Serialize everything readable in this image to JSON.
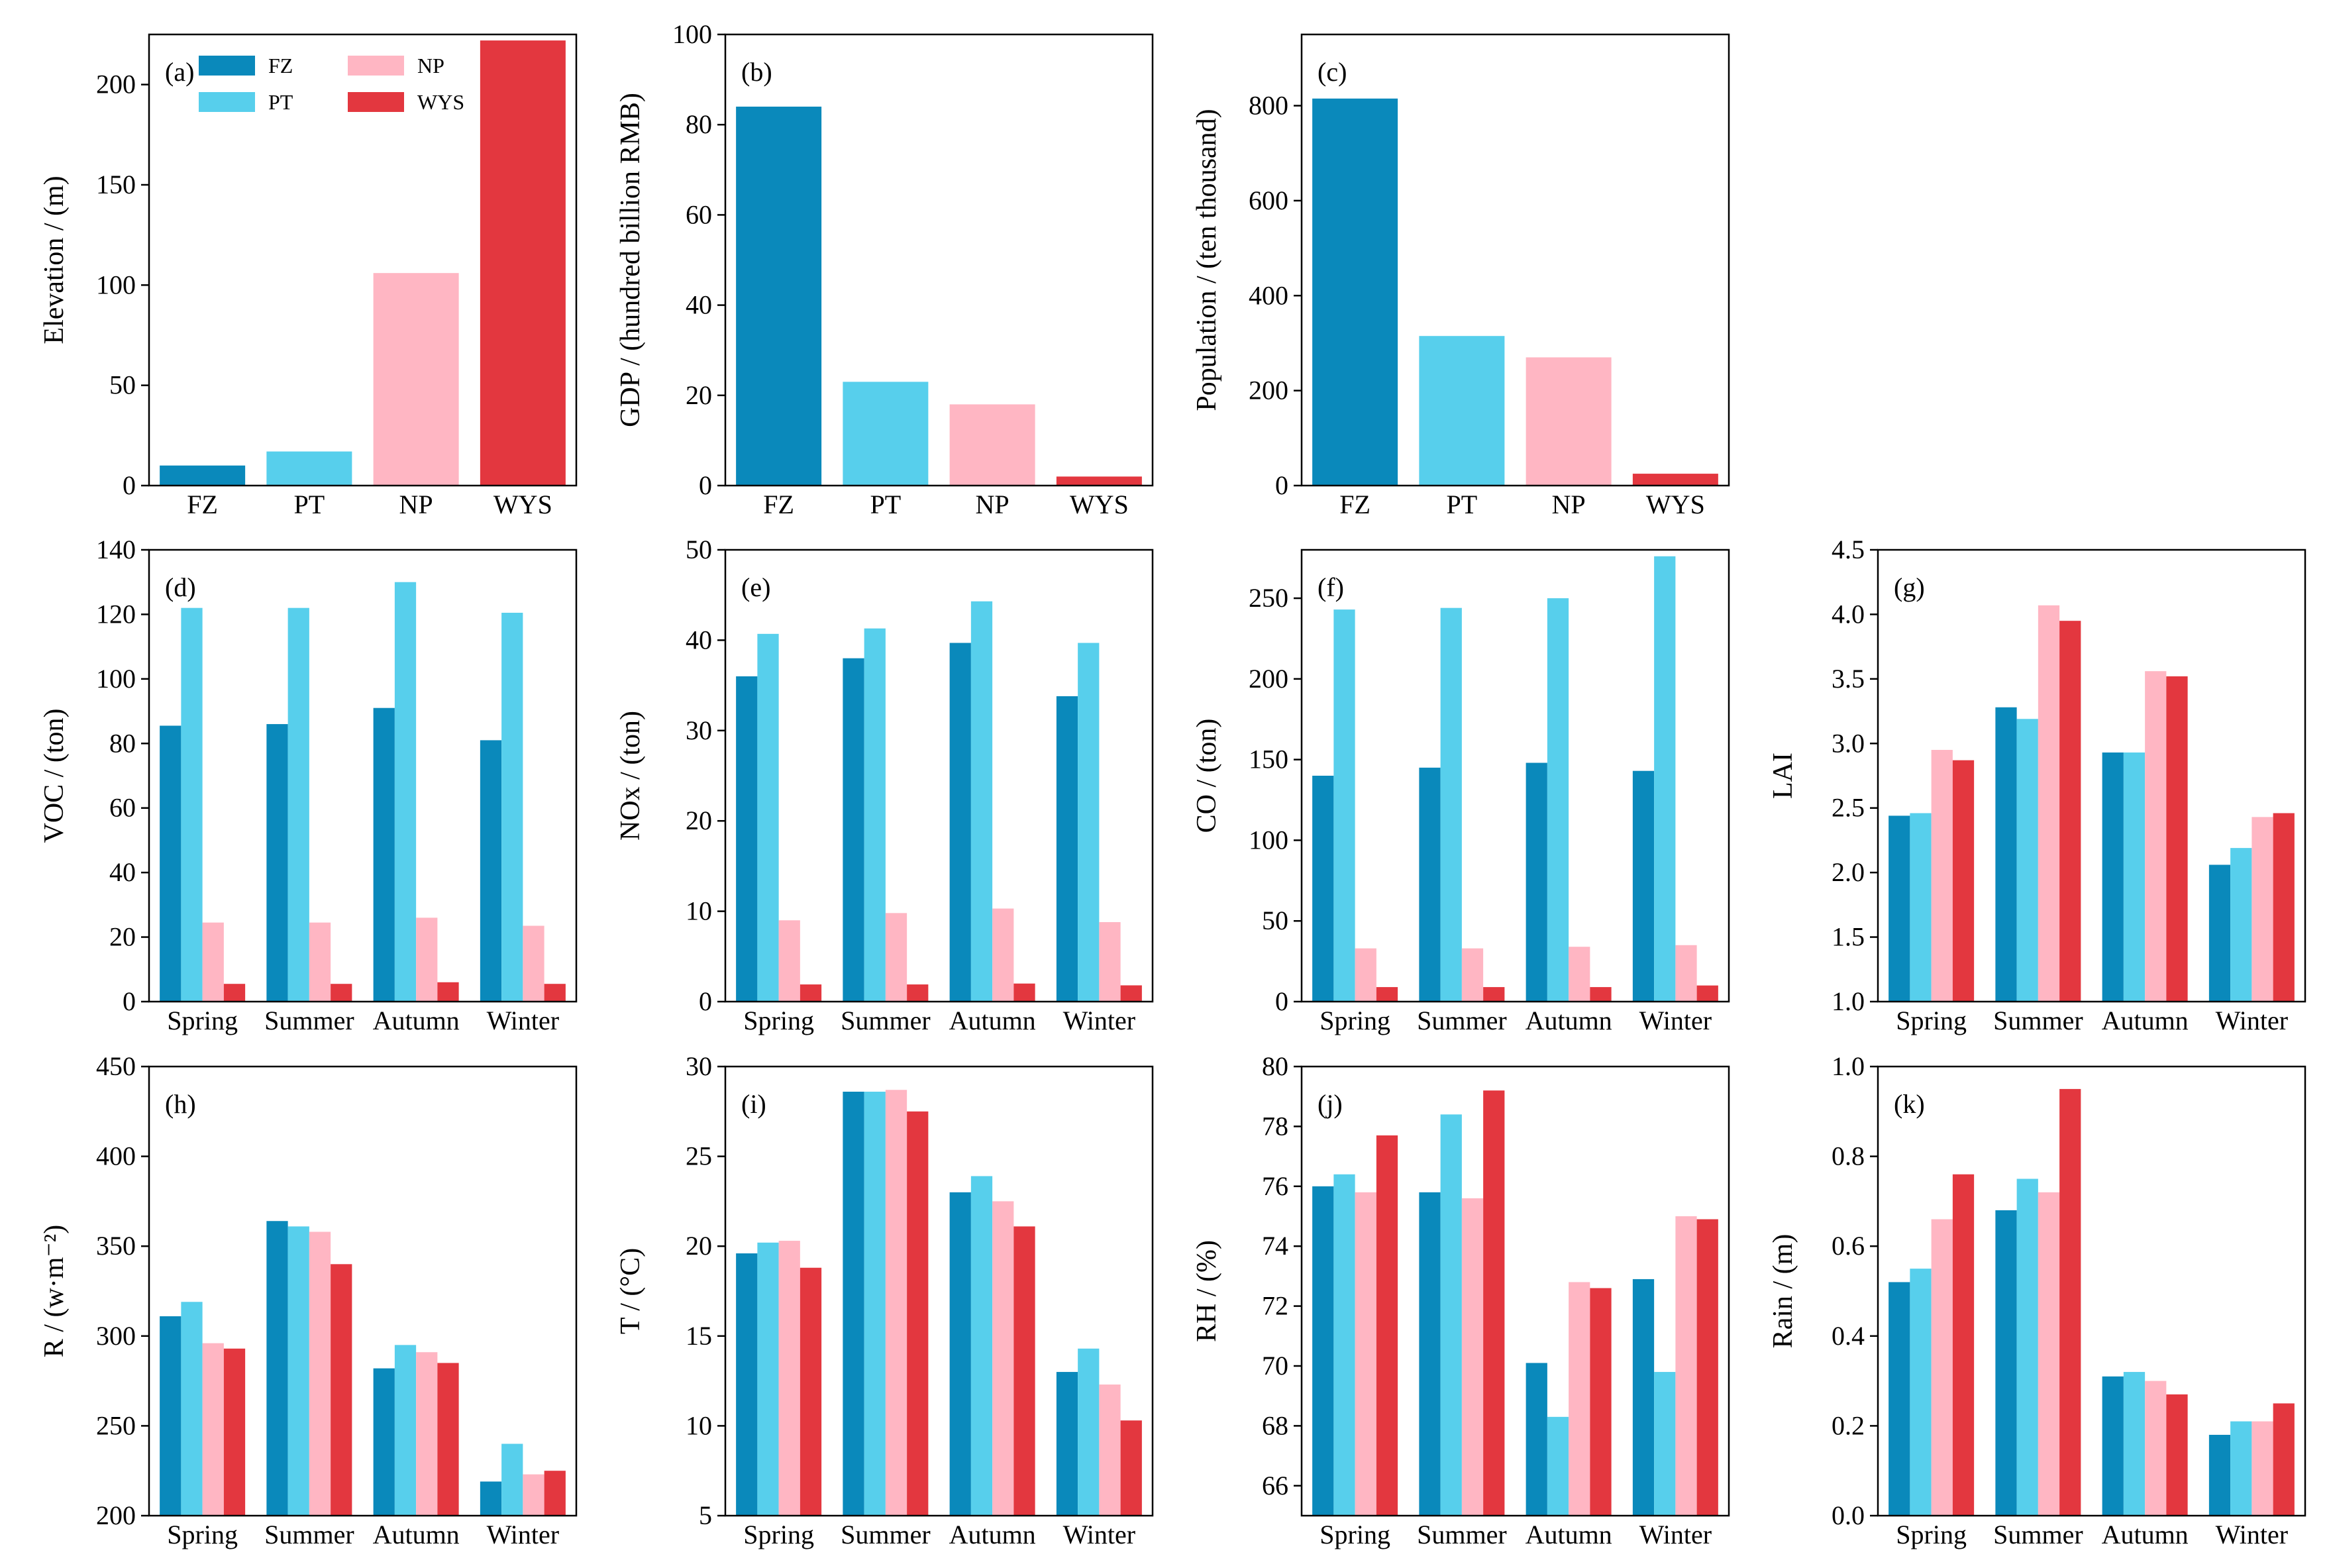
{
  "colors": {
    "FZ": "#0a89bb",
    "PT": "#57cfec",
    "NP": "#ffb6c3",
    "WYS": "#e3373f"
  },
  "legend": {
    "entries": [
      "FZ",
      "PT",
      "NP",
      "WYS"
    ]
  },
  "chart_data": [
    {
      "id": "a",
      "letter": "(a)",
      "type": "bar",
      "ylabel": "Elevation / (m)",
      "categories": [
        "FZ",
        "PT",
        "NP",
        "WYS"
      ],
      "values": [
        10,
        17,
        106,
        222
      ],
      "ylim": [
        0,
        225
      ],
      "yticks": [
        0,
        50,
        100,
        150,
        200
      ]
    },
    {
      "id": "b",
      "letter": "(b)",
      "type": "bar",
      "ylabel": "GDP / (hundred billion RMB)",
      "categories": [
        "FZ",
        "PT",
        "NP",
        "WYS"
      ],
      "values": [
        84,
        23,
        18,
        2
      ],
      "ylim": [
        0,
        100
      ],
      "yticks": [
        0,
        20,
        40,
        60,
        80,
        100
      ]
    },
    {
      "id": "c",
      "letter": "(c)",
      "type": "bar",
      "ylabel": "Population / (ten thousand)",
      "categories": [
        "FZ",
        "PT",
        "NP",
        "WYS"
      ],
      "values": [
        815,
        315,
        270,
        25
      ],
      "ylim": [
        0,
        950
      ],
      "yticks": [
        0,
        200,
        400,
        600,
        800
      ]
    },
    {
      "id": "d",
      "letter": "(d)",
      "type": "bar",
      "ylabel": "VOC / (ton)",
      "categories": [
        "Spring",
        "Summer",
        "Autumn",
        "Winter"
      ],
      "series": [
        {
          "name": "FZ",
          "values": [
            85.5,
            86,
            91,
            81
          ]
        },
        {
          "name": "PT",
          "values": [
            122,
            122,
            130,
            120.5
          ]
        },
        {
          "name": "NP",
          "values": [
            24.5,
            24.5,
            26,
            23.5
          ]
        },
        {
          "name": "WYS",
          "values": [
            5.5,
            5.5,
            6,
            5.5
          ]
        }
      ],
      "ylim": [
        0,
        140
      ],
      "yticks": [
        0,
        20,
        40,
        60,
        80,
        100,
        120,
        140
      ]
    },
    {
      "id": "e",
      "letter": "(e)",
      "type": "bar",
      "ylabel": "NOx / (ton)",
      "categories": [
        "Spring",
        "Summer",
        "Autumn",
        "Winter"
      ],
      "series": [
        {
          "name": "FZ",
          "values": [
            36,
            38,
            39.7,
            33.8
          ]
        },
        {
          "name": "PT",
          "values": [
            40.7,
            41.3,
            44.3,
            39.7
          ]
        },
        {
          "name": "NP",
          "values": [
            9,
            9.8,
            10.3,
            8.8
          ]
        },
        {
          "name": "WYS",
          "values": [
            1.9,
            1.9,
            2,
            1.8
          ]
        }
      ],
      "ylim": [
        0,
        50
      ],
      "yticks": [
        0,
        10,
        20,
        30,
        40,
        50
      ]
    },
    {
      "id": "f",
      "letter": "(f)",
      "type": "bar",
      "ylabel": "CO / (ton)",
      "categories": [
        "Spring",
        "Summer",
        "Autumn",
        "Winter"
      ],
      "series": [
        {
          "name": "FZ",
          "values": [
            140,
            145,
            148,
            143
          ]
        },
        {
          "name": "PT",
          "values": [
            243,
            244,
            250,
            276
          ]
        },
        {
          "name": "NP",
          "values": [
            33,
            33,
            34,
            35
          ]
        },
        {
          "name": "WYS",
          "values": [
            9,
            9,
            9,
            10
          ]
        }
      ],
      "ylim": [
        0,
        280
      ],
      "yticks": [
        0,
        50,
        100,
        150,
        200,
        250
      ]
    },
    {
      "id": "g",
      "letter": "(g)",
      "type": "bar",
      "ylabel": "LAI",
      "categories": [
        "Spring",
        "Summer",
        "Autumn",
        "Winter"
      ],
      "series": [
        {
          "name": "FZ",
          "values": [
            2.44,
            3.28,
            2.93,
            2.06
          ]
        },
        {
          "name": "PT",
          "values": [
            2.46,
            3.19,
            2.93,
            2.19
          ]
        },
        {
          "name": "NP",
          "values": [
            2.95,
            4.07,
            3.56,
            2.43
          ]
        },
        {
          "name": "WYS",
          "values": [
            2.87,
            3.95,
            3.52,
            2.46
          ]
        }
      ],
      "ylim": [
        1.0,
        4.5
      ],
      "yticks": [
        1.0,
        1.5,
        2.0,
        2.5,
        3.0,
        3.5,
        4.0,
        4.5
      ],
      "decimals": 1
    },
    {
      "id": "h",
      "letter": "(h)",
      "type": "bar",
      "ylabel": "R / (w·m⁻²)",
      "categories": [
        "Spring",
        "Summer",
        "Autumn",
        "Winter"
      ],
      "series": [
        {
          "name": "FZ",
          "values": [
            311,
            364,
            282,
            219
          ]
        },
        {
          "name": "PT",
          "values": [
            319,
            361,
            295,
            240
          ]
        },
        {
          "name": "NP",
          "values": [
            296,
            358,
            291,
            223
          ]
        },
        {
          "name": "WYS",
          "values": [
            293,
            340,
            285,
            225
          ]
        }
      ],
      "ylim": [
        200,
        450
      ],
      "yticks": [
        200,
        250,
        300,
        350,
        400,
        450
      ]
    },
    {
      "id": "i",
      "letter": "(i)",
      "type": "bar",
      "ylabel": "T / (°C)",
      "categories": [
        "Spring",
        "Summer",
        "Autumn",
        "Winter"
      ],
      "series": [
        {
          "name": "FZ",
          "values": [
            19.6,
            28.6,
            23.0,
            13.0
          ]
        },
        {
          "name": "PT",
          "values": [
            20.2,
            28.6,
            23.9,
            14.3
          ]
        },
        {
          "name": "NP",
          "values": [
            20.3,
            28.7,
            22.5,
            12.3
          ]
        },
        {
          "name": "WYS",
          "values": [
            18.8,
            27.5,
            21.1,
            10.3
          ]
        }
      ],
      "ylim": [
        5,
        30
      ],
      "yticks": [
        5,
        10,
        15,
        20,
        25,
        30
      ]
    },
    {
      "id": "j",
      "letter": "(j)",
      "type": "bar",
      "ylabel": "RH / (%)",
      "categories": [
        "Spring",
        "Summer",
        "Autumn",
        "Winter"
      ],
      "series": [
        {
          "name": "FZ",
          "values": [
            76.0,
            75.8,
            70.1,
            72.9
          ]
        },
        {
          "name": "PT",
          "values": [
            76.4,
            78.4,
            68.3,
            69.8
          ]
        },
        {
          "name": "NP",
          "values": [
            75.8,
            75.6,
            72.8,
            75.0
          ]
        },
        {
          "name": "WYS",
          "values": [
            77.7,
            79.2,
            72.6,
            74.9
          ]
        }
      ],
      "ylim": [
        65,
        80
      ],
      "yticks": [
        66,
        68,
        70,
        72,
        74,
        76,
        78,
        80
      ]
    },
    {
      "id": "k",
      "letter": "(k)",
      "type": "bar",
      "ylabel": "Rain / (m)",
      "categories": [
        "Spring",
        "Summer",
        "Autumn",
        "Winter"
      ],
      "series": [
        {
          "name": "FZ",
          "values": [
            0.52,
            0.68,
            0.31,
            0.18
          ]
        },
        {
          "name": "PT",
          "values": [
            0.55,
            0.75,
            0.32,
            0.21
          ]
        },
        {
          "name": "NP",
          "values": [
            0.66,
            0.72,
            0.3,
            0.21
          ]
        },
        {
          "name": "WYS",
          "values": [
            0.76,
            0.95,
            0.27,
            0.25
          ]
        }
      ],
      "ylim": [
        0,
        1.0
      ],
      "yticks": [
        0.0,
        0.2,
        0.4,
        0.6,
        0.8,
        1.0
      ],
      "decimals": 1
    }
  ]
}
